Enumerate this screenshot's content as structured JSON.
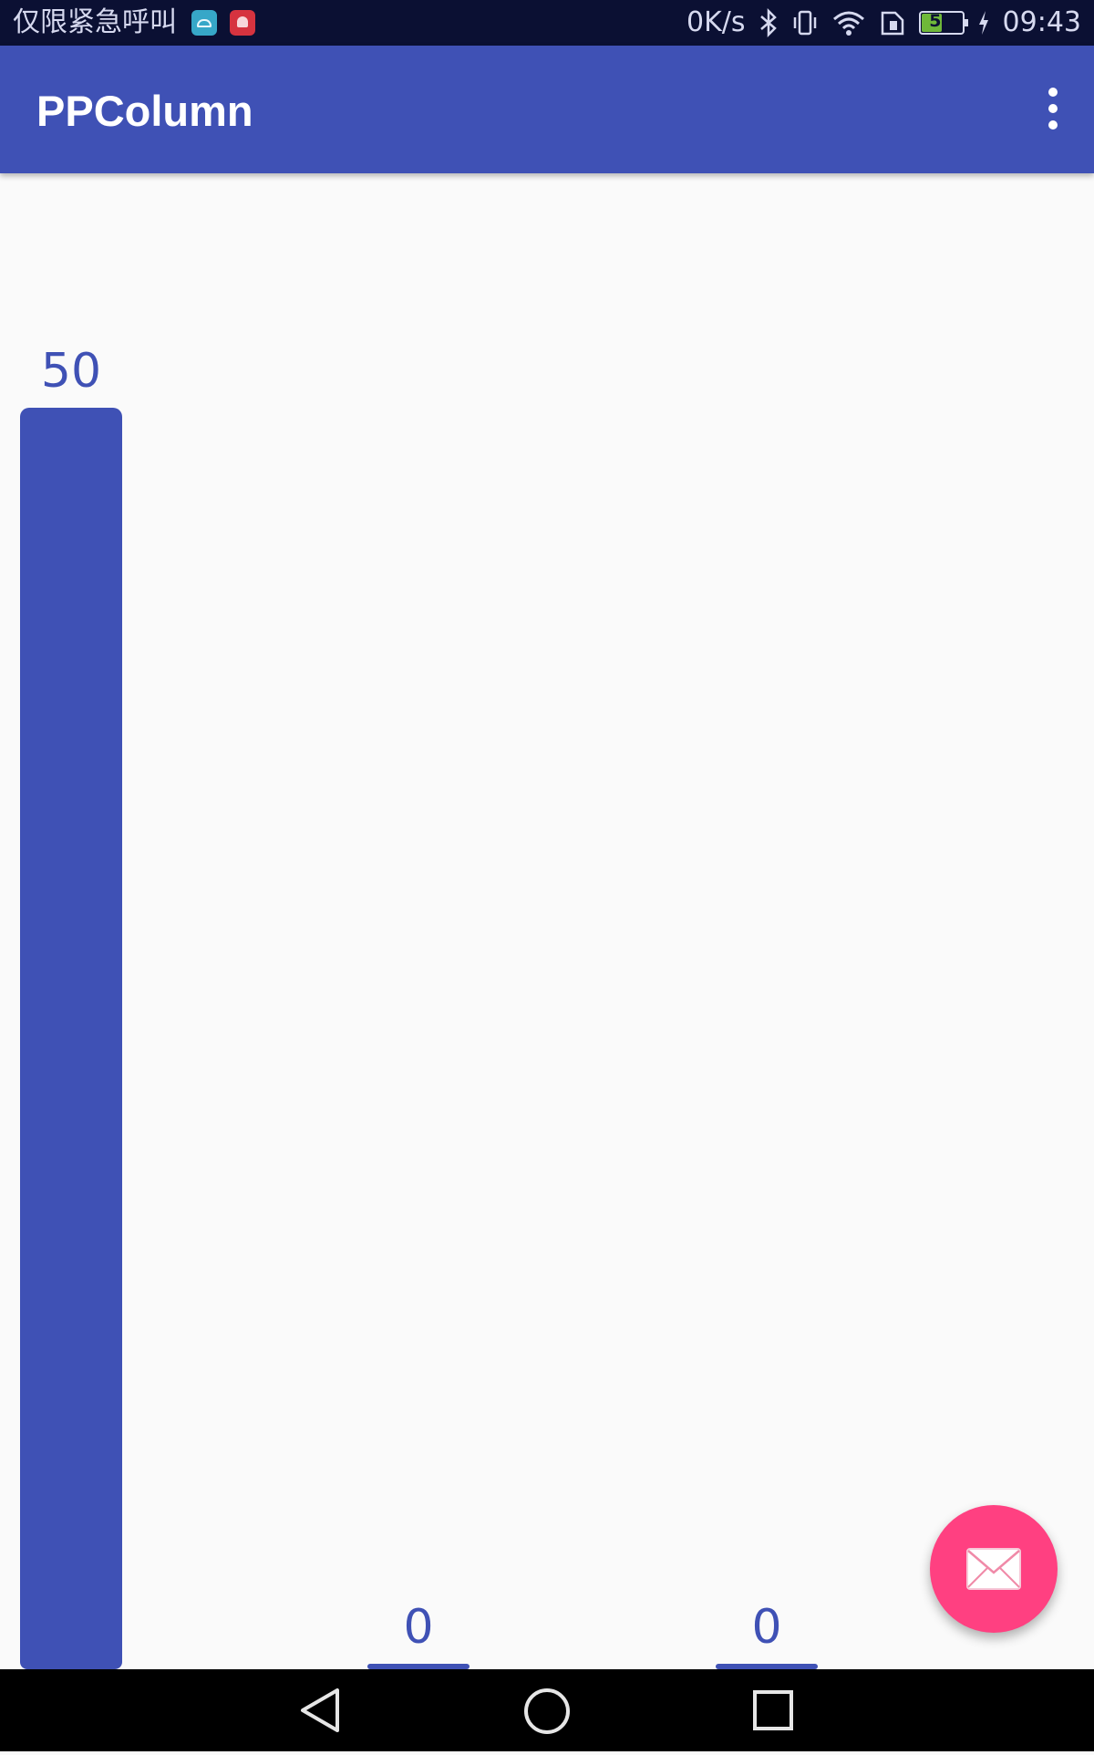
{
  "status_bar": {
    "carrier_text": "仅限紧急呼叫",
    "net_speed": "0K/s",
    "battery_level": "51",
    "battery_fraction": 0.51,
    "time": "09:43",
    "icons": [
      "android-notification-icon",
      "huawei-notification-icon",
      "bluetooth-icon",
      "vibrate-icon",
      "wifi-icon",
      "sim-icon",
      "battery-icon",
      "charging-icon"
    ]
  },
  "app_bar": {
    "title": "PPColumn",
    "overflow_icon": "more-vert-icon"
  },
  "chart_data": {
    "type": "bar",
    "categories": [
      "",
      "",
      ""
    ],
    "values": [
      50,
      0,
      0
    ],
    "data_labels": [
      "50",
      "0",
      "0"
    ],
    "title": "",
    "xlabel": "",
    "ylabel": "",
    "ylim": [
      0,
      60
    ],
    "color": "#3f51b5",
    "grid": false
  },
  "fab": {
    "icon": "email-icon",
    "color": "#ff4081"
  },
  "nav_bar": {
    "icons": [
      "back-icon",
      "home-icon",
      "recents-icon"
    ]
  },
  "colors": {
    "primary": "#3f51b5",
    "accent": "#ff4081",
    "background": "#fafafa",
    "status_bar": "#0b1033"
  }
}
